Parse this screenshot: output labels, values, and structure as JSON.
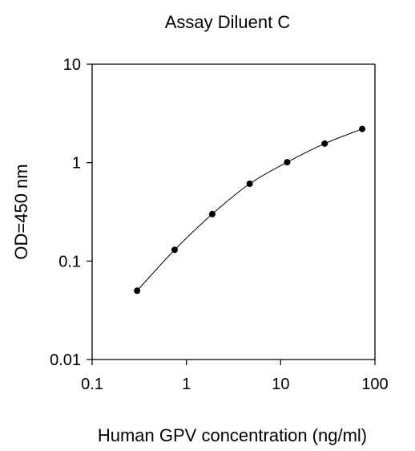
{
  "chart_data": {
    "type": "scatter",
    "title": "Assay Diluent C",
    "xlabel": "Human GPV concentration (ng/ml)",
    "ylabel": "OD=450 nm",
    "x_scale": "log",
    "y_scale": "log",
    "xlim": [
      0.1,
      100
    ],
    "ylim": [
      0.01,
      10
    ],
    "x_ticks": [
      "0.1",
      "1",
      "10",
      "100"
    ],
    "y_ticks": [
      "0.01",
      "0.1",
      "1",
      "10"
    ],
    "grid": false,
    "legend": "none",
    "series": [
      {
        "x": [
          0.3,
          0.75,
          1.88,
          4.69,
          11.72,
          29.3,
          73.25
        ],
        "y": [
          0.05,
          0.13,
          0.3,
          0.61,
          1.01,
          1.56,
          2.2
        ],
        "color": "#000000",
        "marker": "circle",
        "line": "smooth"
      }
    ]
  }
}
